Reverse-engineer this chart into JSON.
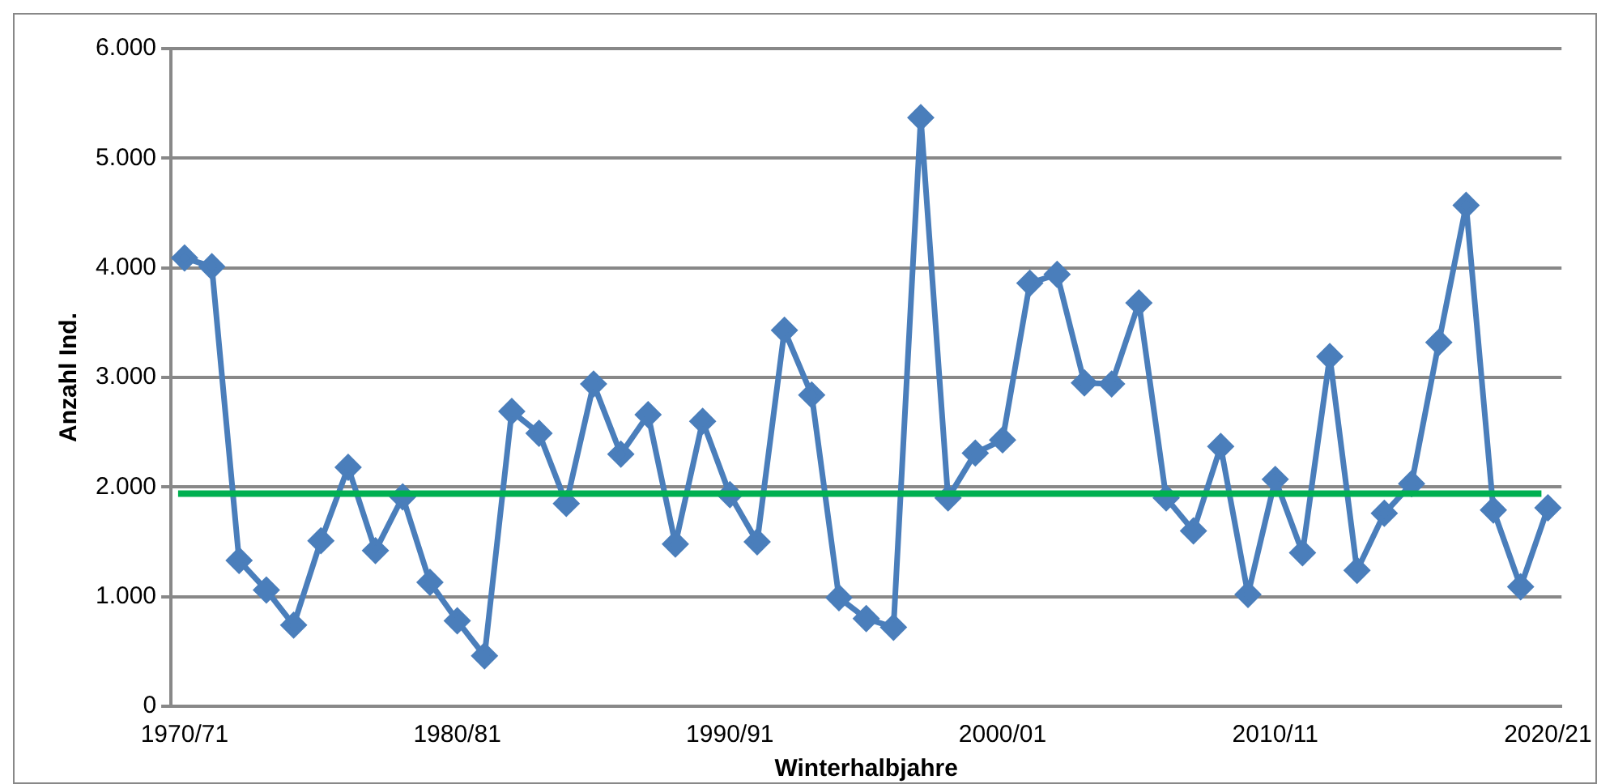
{
  "chart_data": {
    "type": "line",
    "xlabel": "Winterhalbjahre",
    "ylabel": "Anzahl Ind.",
    "categories": [
      "1970/71",
      null,
      null,
      null,
      null,
      null,
      null,
      null,
      null,
      null,
      "1980/81",
      null,
      null,
      null,
      null,
      null,
      null,
      null,
      null,
      null,
      "1990/91",
      null,
      null,
      null,
      null,
      null,
      null,
      null,
      null,
      null,
      "2000/01",
      null,
      null,
      null,
      null,
      null,
      null,
      null,
      null,
      null,
      "2010/11",
      null,
      null,
      null,
      null,
      null,
      null,
      null,
      null,
      null,
      "2020/21"
    ],
    "series": [
      {
        "color": "#4a7ebb",
        "values": [
          4090,
          4010,
          1330,
          1060,
          740,
          1510,
          2180,
          1420,
          1910,
          1130,
          780,
          460,
          2690,
          2490,
          1850,
          2940,
          2300,
          2660,
          1480,
          2600,
          1930,
          1500,
          3430,
          2840,
          990,
          800,
          720,
          5370,
          1900,
          2310,
          2430,
          3860,
          3940,
          2950,
          2940,
          3680,
          1900,
          1600,
          2370,
          1020,
          2070,
          1400,
          3190,
          1240,
          1760,
          2030,
          3320,
          4570,
          1790,
          1090,
          1810
        ]
      }
    ],
    "ylim": [
      0,
      6000
    ],
    "yticks": [
      {
        "value": 0,
        "label": "0"
      },
      {
        "value": 1000,
        "label": "1.000"
      },
      {
        "value": 2000,
        "label": "2.000"
      },
      {
        "value": 3000,
        "label": "3.000"
      },
      {
        "value": 4000,
        "label": "4.000"
      },
      {
        "value": 5000,
        "label": "5.000"
      },
      {
        "value": 6000,
        "label": "6.000"
      }
    ],
    "ref_lines": [
      {
        "axis": "y",
        "value": 1940,
        "color": "#00b050"
      }
    ],
    "grid": "y",
    "legend": false,
    "marker": "diamond",
    "line_style": "solid"
  }
}
